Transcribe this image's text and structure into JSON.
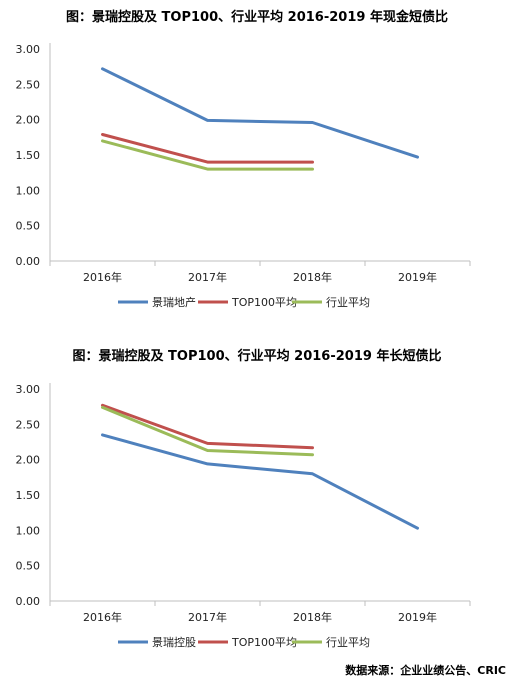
{
  "chart_data": [
    {
      "type": "line",
      "title": "图：景瑞控股及 TOP100、行业平均 2016-2019 年现金短债比",
      "categories": [
        "2016年",
        "2017年",
        "2018年",
        "2019年"
      ],
      "ylim": [
        0,
        3
      ],
      "yticks": [
        "0.00",
        "0.50",
        "1.00",
        "1.50",
        "2.00",
        "2.50",
        "3.00"
      ],
      "grid": false,
      "legend_position": "bottom",
      "series": [
        {
          "name": "景瑞地产",
          "color": "#4F81BD",
          "values": [
            2.72,
            1.99,
            1.96,
            1.47
          ]
        },
        {
          "name": "TOP100平均",
          "color": "#C0504D",
          "values": [
            1.79,
            1.4,
            1.4,
            null
          ]
        },
        {
          "name": "行业平均",
          "color": "#9BBB59",
          "values": [
            1.7,
            1.3,
            1.3,
            null
          ]
        }
      ]
    },
    {
      "type": "line",
      "title": "图：景瑞控股及 TOP100、行业平均 2016-2019 年长短债比",
      "categories": [
        "2016年",
        "2017年",
        "2018年",
        "2019年"
      ],
      "ylim": [
        0,
        3
      ],
      "yticks": [
        "0.00",
        "0.50",
        "1.00",
        "1.50",
        "2.00",
        "2.50",
        "3.00"
      ],
      "grid": false,
      "legend_position": "bottom",
      "series": [
        {
          "name": "景瑞控股",
          "color": "#4F81BD",
          "values": [
            2.35,
            1.94,
            1.8,
            1.03
          ]
        },
        {
          "name": "TOP100平均",
          "color": "#C0504D",
          "values": [
            2.77,
            2.23,
            2.17,
            null
          ]
        },
        {
          "name": "行业平均",
          "color": "#9BBB59",
          "values": [
            2.74,
            2.13,
            2.07,
            null
          ]
        }
      ]
    }
  ],
  "source_note": "数据来源：企业业绩公告、CRIC"
}
